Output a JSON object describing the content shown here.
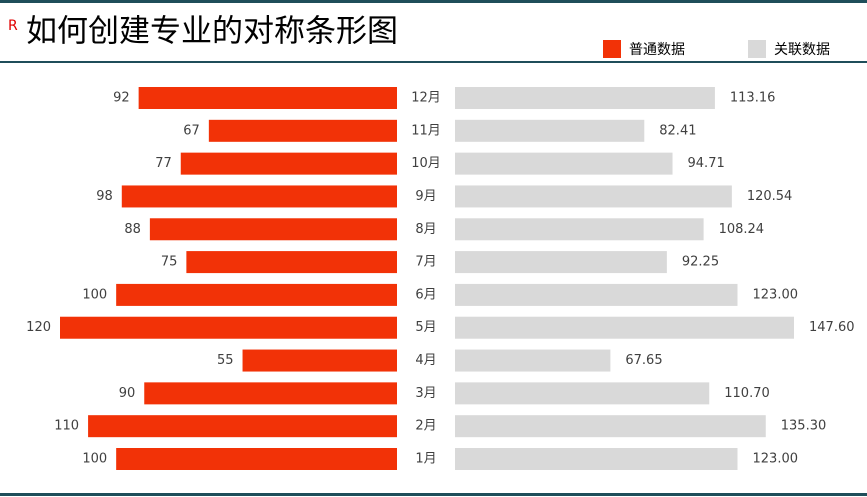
{
  "chart_data": {
    "type": "mirror-bar",
    "badge": "R",
    "title": "如何创建专业的对称条形图",
    "categories": [
      "12月",
      "11月",
      "10月",
      "9月",
      "8月",
      "7月",
      "6月",
      "5月",
      "4月",
      "3月",
      "2月",
      "1月"
    ],
    "series": [
      {
        "name": "普通数据",
        "color": "#f23207",
        "xlim": [
          0,
          120
        ],
        "values": [
          92,
          67,
          77,
          98,
          88,
          75,
          100,
          120,
          55,
          90,
          110,
          100
        ]
      },
      {
        "name": "关联数据",
        "color": "#d9d9d9",
        "xlim": [
          0,
          147.6
        ],
        "values": [
          113.16,
          82.41,
          94.71,
          120.54,
          108.24,
          92.25,
          123,
          147.6,
          67.65,
          110.7,
          135.3,
          123
        ],
        "value_labels": [
          "113.16",
          "82.41",
          "94.71",
          "120.54",
          "108.24",
          "92.25",
          "123.00",
          "147.60",
          "67.65",
          "110.70",
          "135.30",
          "123.00"
        ]
      }
    ]
  }
}
